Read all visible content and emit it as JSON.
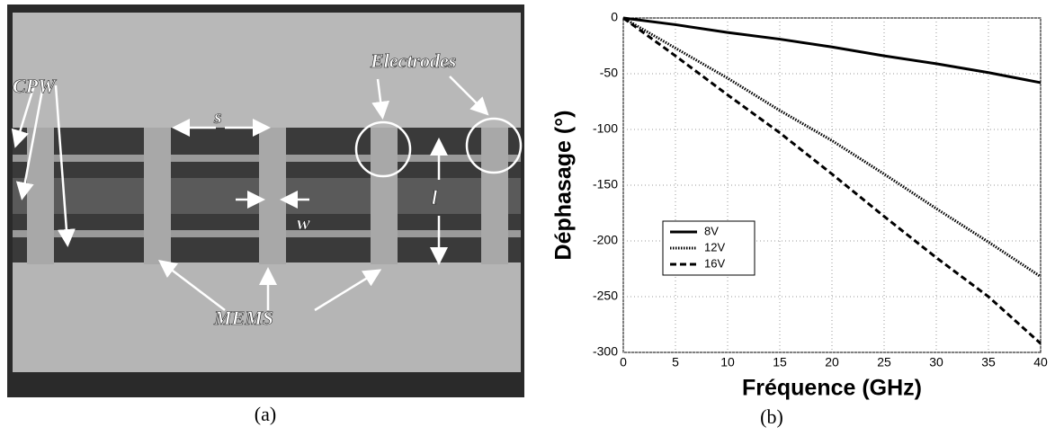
{
  "photo": {
    "labels": {
      "cpw": "CPW",
      "s": "s",
      "w": "w",
      "l": "l",
      "electrodes": "Electrodes",
      "mems": "MEMS"
    },
    "caption": "(a)"
  },
  "chart_data": {
    "type": "line",
    "caption": "(b)",
    "xlabel": "Fréquence (GHz)",
    "ylabel": "Déphasage (°)",
    "x": [
      0,
      5,
      10,
      15,
      20,
      25,
      30,
      35,
      40
    ],
    "series": [
      {
        "name": "8V",
        "color": "#000000",
        "line_style": "solid",
        "values": [
          0,
          -6,
          -13,
          -19,
          -26,
          -34,
          -41,
          -49,
          -58
        ]
      },
      {
        "name": "12V",
        "color": "#000000",
        "line_style": "dotted",
        "values": [
          0,
          -27,
          -54,
          -83,
          -110,
          -140,
          -171,
          -201,
          -232
        ]
      },
      {
        "name": "16V",
        "color": "#000000",
        "line_style": "dashed",
        "values": [
          0,
          -34,
          -69,
          -103,
          -140,
          -178,
          -215,
          -250,
          -292
        ]
      }
    ],
    "xlim": [
      0,
      40
    ],
    "ylim": [
      -300,
      0
    ],
    "xticks": [
      0,
      5,
      10,
      15,
      20,
      25,
      30,
      35,
      40
    ],
    "yticks": [
      -300,
      -250,
      -200,
      -150,
      -100,
      -50,
      0
    ],
    "grid": true,
    "legend": "lower-left"
  }
}
